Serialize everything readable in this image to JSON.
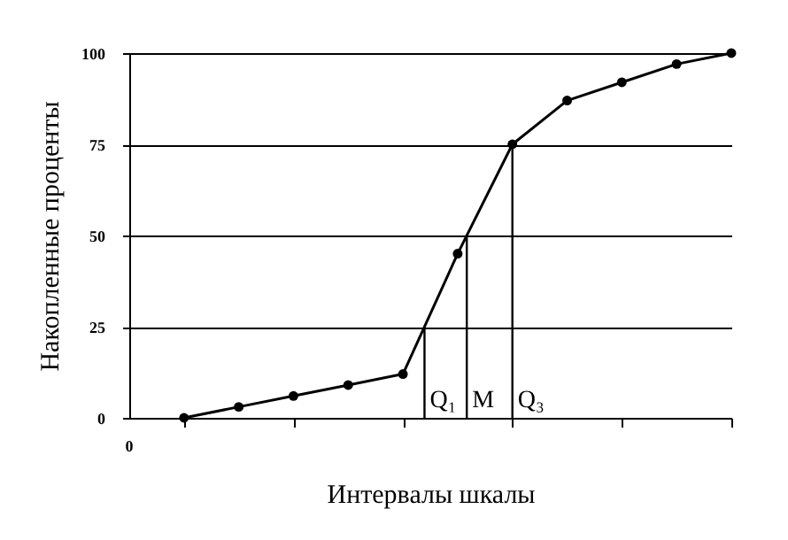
{
  "chart_data": {
    "type": "line",
    "xlabel": "Интервалы шкалы",
    "ylabel": "Накопленные проценты",
    "categories": [
      null,
      null,
      null,
      null,
      null,
      null,
      null,
      null,
      null,
      null,
      null
    ],
    "series": [
      {
        "color": "#000000",
        "values": [
          0,
          3,
          6,
          9,
          12,
          45,
          75,
          87,
          92,
          97,
          100
        ]
      }
    ],
    "ylim": [
      0,
      100
    ],
    "yticks": [
      0,
      25,
      50,
      75,
      100
    ],
    "annotations": [
      "0",
      "Q₁",
      "M",
      "Q₃"
    ],
    "grid": "y",
    "marker": "circle",
    "line_style": "solid"
  }
}
